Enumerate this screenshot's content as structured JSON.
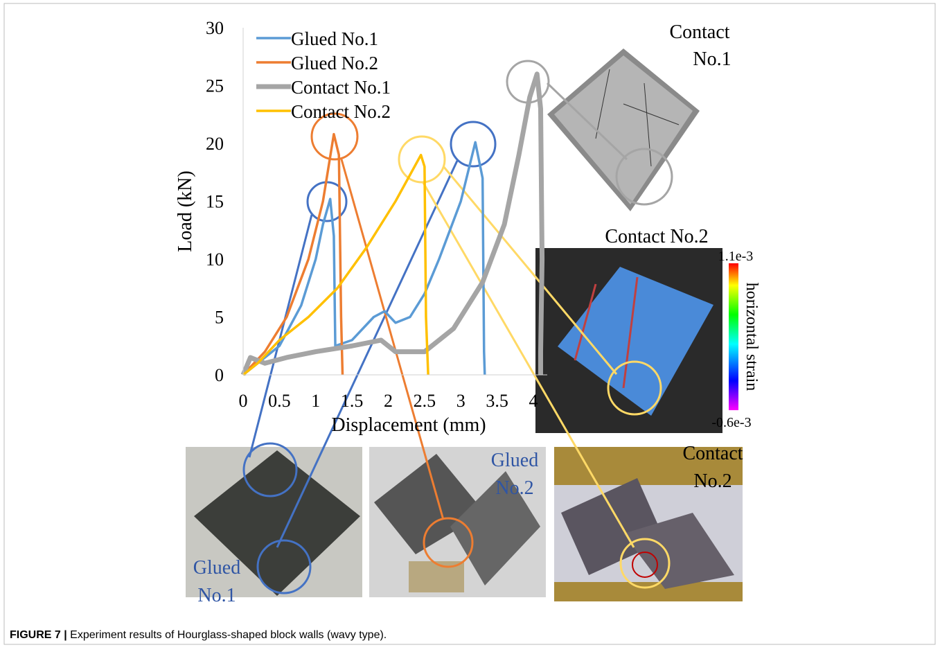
{
  "chart_data": {
    "type": "line",
    "xlabel": "Displacement (mm)",
    "ylabel": "Load (kN)",
    "xlim": [
      0,
      4
    ],
    "xticks": [
      0,
      0.5,
      1,
      1.5,
      2,
      2.5,
      3,
      3.5,
      4
    ],
    "ylim": [
      0,
      30
    ],
    "yticks": [
      0,
      5,
      10,
      15,
      20,
      25,
      30
    ],
    "grid": false,
    "series": [
      {
        "name": "Glued No.1",
        "color": "#5b9bd5",
        "x": [
          0,
          0.2,
          0.5,
          0.8,
          1.0,
          1.1,
          1.2,
          1.25,
          1.27,
          1.5,
          1.8,
          1.95,
          2.1,
          2.3,
          2.5,
          2.7,
          3.0,
          3.2,
          3.3,
          3.32,
          3.33
        ],
        "values": [
          0,
          1,
          2.5,
          6,
          10,
          13,
          15.2,
          12,
          2.5,
          3,
          5,
          5.5,
          4.5,
          5,
          7,
          10,
          15,
          20.1,
          17,
          2,
          0
        ]
      },
      {
        "name": "Glued No.2",
        "color": "#ed7d31",
        "x": [
          0,
          0.3,
          0.6,
          0.9,
          1.1,
          1.25,
          1.32,
          1.35,
          1.37
        ],
        "values": [
          0,
          2,
          5,
          10,
          15,
          20.8,
          19,
          5,
          0
        ]
      },
      {
        "name": "Contact No.1",
        "color": "#a5a5a5",
        "x": [
          0,
          0.1,
          0.3,
          0.6,
          1.0,
          1.5,
          1.9,
          2.1,
          2.5,
          2.9,
          3.3,
          3.6,
          3.8,
          3.95,
          4.05,
          4.1,
          4.12,
          4.1,
          4.1
        ],
        "values": [
          0,
          1.5,
          1,
          1.5,
          2,
          2.5,
          3,
          2,
          2,
          4,
          8,
          13,
          19,
          24,
          26,
          23,
          10,
          2,
          0
        ]
      },
      {
        "name": "Contact No.2",
        "color": "#ffc000",
        "x": [
          0,
          0.2,
          0.5,
          0.9,
          1.3,
          1.7,
          2.1,
          2.45,
          2.5,
          2.52,
          2.55
        ],
        "values": [
          0,
          1,
          3,
          5,
          7.5,
          11,
          15,
          19,
          18,
          5,
          0
        ]
      }
    ]
  },
  "photos": {
    "contact1_label": [
      "Contact",
      "No.1"
    ],
    "contact2_dic_title": "Contact No.2",
    "colorbar_max": "1.1e-3",
    "colorbar_min": "-0.6e-3",
    "colorbar_label": "horizontal strain",
    "glued2_label": [
      "Glued",
      "No.2"
    ],
    "contact2_label": [
      "Contact",
      "No.2"
    ],
    "glued1_label": [
      "Glued",
      "No.1"
    ]
  },
  "caption": {
    "label": "FIGURE 7 |",
    "text": "Experiment results of Hourglass-shaped block walls (wavy type)."
  }
}
